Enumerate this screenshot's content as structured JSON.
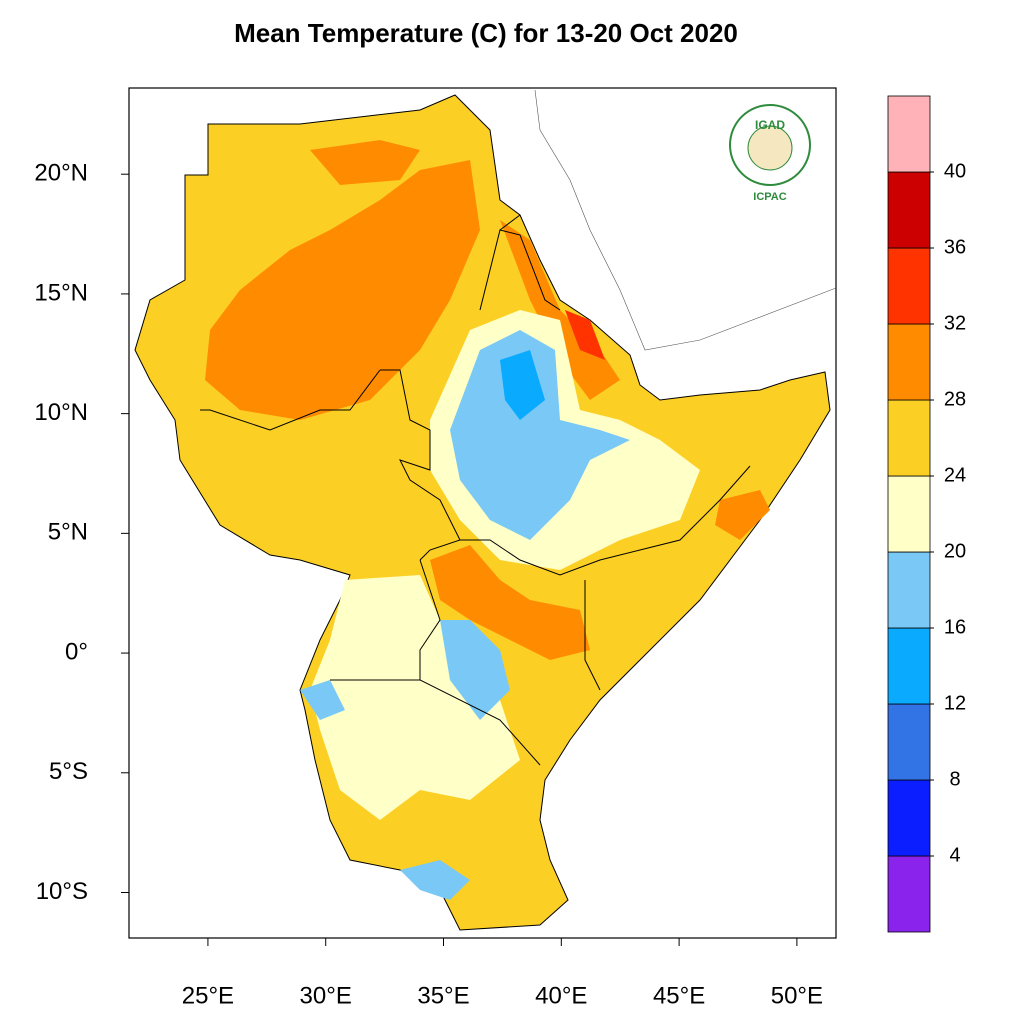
{
  "map": {
    "title": "Mean Temperature (C) for 13-20 Oct 2020",
    "lon_range": [
      21.65,
      51.66
    ],
    "lat_range": [
      -11.9,
      23.6
    ],
    "lon_ticks": [
      {
        "value": 25,
        "label": "25°E"
      },
      {
        "value": 30,
        "label": "30°E"
      },
      {
        "value": 35,
        "label": "35°E"
      },
      {
        "value": 40,
        "label": "40°E"
      },
      {
        "value": 45,
        "label": "45°E"
      },
      {
        "value": 50,
        "label": "50°E"
      }
    ],
    "lat_ticks": [
      {
        "value": 20,
        "label": "20°N"
      },
      {
        "value": 15,
        "label": "15°N"
      },
      {
        "value": 10,
        "label": "10°N"
      },
      {
        "value": 5,
        "label": "5°N"
      },
      {
        "value": 0,
        "label": "0°"
      },
      {
        "value": -5,
        "label": "5°S"
      },
      {
        "value": -10,
        "label": "10°S"
      }
    ],
    "colorbar": {
      "levels": [
        4,
        8,
        12,
        16,
        20,
        24,
        28,
        32,
        36,
        40
      ],
      "colors": [
        "#8a23eb",
        "#0a1eff",
        "#3273e6",
        "#0aaaff",
        "#7ac8f5",
        "#ffffc8",
        "#fccf25",
        "#ff8c00",
        "#ff3300",
        "#cc0000",
        "#ffb3b8"
      ]
    },
    "logo": {
      "name": "IGAD",
      "caption": "ICPAC"
    }
  }
}
